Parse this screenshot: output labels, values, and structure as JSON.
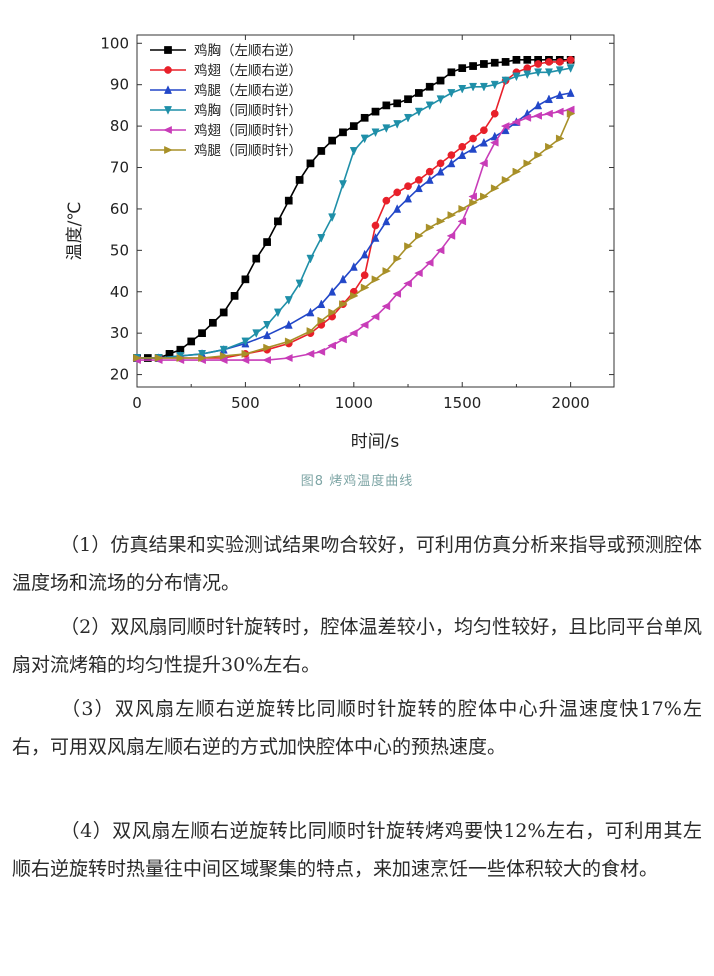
{
  "figure": {
    "caption": "图8 烤鸡温度曲线"
  },
  "chart_data": {
    "type": "line",
    "xlabel": "时间/s",
    "ylabel": "温度/℃",
    "xlim": [
      0,
      2200
    ],
    "ylim": [
      17,
      102
    ],
    "xticks": [
      0,
      500,
      1000,
      1500,
      2000
    ],
    "yticks": [
      20,
      30,
      40,
      50,
      60,
      70,
      80,
      90,
      100
    ],
    "grid": false,
    "legend": "top-left",
    "series": [
      {
        "name": "鸡胸（左顺右逆）",
        "color": "#000000",
        "marker": "square",
        "x": [
          0,
          50,
          100,
          150,
          200,
          250,
          300,
          350,
          400,
          450,
          500,
          550,
          600,
          650,
          700,
          750,
          800,
          850,
          900,
          950,
          1000,
          1050,
          1100,
          1150,
          1200,
          1250,
          1300,
          1350,
          1400,
          1450,
          1500,
          1550,
          1600,
          1650,
          1700,
          1750,
          1800,
          1850,
          1900,
          1950,
          2000
        ],
        "y": [
          24,
          24,
          24,
          25,
          26,
          28,
          30,
          32.5,
          35,
          39,
          43,
          48,
          52,
          57,
          62,
          67,
          71,
          74,
          76.5,
          78.5,
          80,
          82,
          83.5,
          85,
          85.5,
          86.5,
          88,
          89.5,
          91,
          93,
          94,
          94.5,
          95,
          95.3,
          95.5,
          96,
          96,
          96,
          96,
          96,
          96
        ]
      },
      {
        "name": "鸡翅（左顺右逆）",
        "color": "#e8202a",
        "marker": "circle",
        "x": [
          0,
          100,
          200,
          300,
          400,
          500,
          600,
          700,
          800,
          850,
          900,
          950,
          1000,
          1050,
          1100,
          1150,
          1200,
          1250,
          1300,
          1350,
          1400,
          1450,
          1500,
          1550,
          1600,
          1650,
          1700,
          1750,
          1800,
          1850,
          1900,
          1950,
          2000
        ],
        "y": [
          24,
          24,
          24,
          24,
          24,
          25,
          26,
          27.5,
          30,
          32,
          34,
          37,
          40,
          44,
          56,
          62,
          64,
          65.5,
          67,
          69,
          71,
          73,
          75,
          77,
          79,
          83,
          91,
          93,
          94,
          95,
          95.5,
          95.5,
          96
        ]
      },
      {
        "name": "鸡腿（左顺右逆）",
        "color": "#2247c8",
        "marker": "triangle-up",
        "x": [
          0,
          100,
          200,
          300,
          400,
          500,
          600,
          700,
          800,
          850,
          900,
          950,
          1000,
          1050,
          1100,
          1150,
          1200,
          1250,
          1300,
          1350,
          1400,
          1450,
          1500,
          1550,
          1600,
          1650,
          1700,
          1750,
          1800,
          1850,
          1900,
          1950,
          2000
        ],
        "y": [
          24,
          24,
          24.5,
          25,
          26,
          27.5,
          29.5,
          32,
          35,
          37,
          40,
          43,
          46,
          49,
          53,
          57,
          60,
          62.5,
          65,
          67,
          69,
          71,
          73,
          74.5,
          76,
          77.5,
          79,
          81,
          83,
          85,
          86.5,
          87.5,
          88
        ]
      },
      {
        "name": "鸡胸（同顺时针）",
        "color": "#1f8fa8",
        "marker": "triangle-down",
        "x": [
          0,
          100,
          200,
          300,
          400,
          500,
          550,
          600,
          650,
          700,
          750,
          800,
          850,
          900,
          950,
          1000,
          1050,
          1100,
          1150,
          1200,
          1250,
          1300,
          1350,
          1400,
          1450,
          1500,
          1550,
          1600,
          1650,
          1700,
          1750,
          1800,
          1850,
          1900,
          1950,
          2000
        ],
        "y": [
          24,
          24,
          24.5,
          25,
          26,
          28,
          30,
          32,
          35,
          38,
          42,
          48,
          53,
          58,
          66,
          74,
          77,
          78.5,
          79.5,
          80.5,
          82,
          83.5,
          85,
          86.5,
          88,
          89,
          89.5,
          89.5,
          90,
          91,
          92,
          92.5,
          93,
          93,
          93.5,
          94
        ]
      },
      {
        "name": "鸡翅（同顺时针）",
        "color": "#c83cb8",
        "marker": "triangle-left",
        "x": [
          0,
          100,
          200,
          300,
          400,
          500,
          600,
          700,
          800,
          850,
          900,
          950,
          1000,
          1050,
          1100,
          1150,
          1200,
          1250,
          1300,
          1350,
          1400,
          1450,
          1500,
          1550,
          1600,
          1650,
          1700,
          1750,
          1800,
          1850,
          1900,
          1950,
          2000
        ],
        "y": [
          23.5,
          23.5,
          23.5,
          23.5,
          23.5,
          23.5,
          23.5,
          24,
          25,
          25.5,
          27,
          28.5,
          30,
          32,
          34,
          36.5,
          39.5,
          42,
          44.5,
          47,
          50,
          53.5,
          57,
          63,
          71,
          76,
          80,
          81,
          82,
          82.5,
          83,
          83.5,
          84
        ]
      },
      {
        "name": "鸡腿（同顺时针）",
        "color": "#a89028",
        "marker": "triangle-right",
        "x": [
          0,
          100,
          200,
          300,
          400,
          500,
          600,
          700,
          800,
          850,
          900,
          950,
          1000,
          1050,
          1100,
          1150,
          1200,
          1250,
          1300,
          1350,
          1400,
          1450,
          1500,
          1550,
          1600,
          1650,
          1700,
          1750,
          1800,
          1850,
          1900,
          1950,
          2000
        ],
        "y": [
          24,
          24,
          24,
          24,
          24.5,
          25,
          26.5,
          28,
          30.5,
          33,
          35,
          37,
          39,
          41,
          43,
          45,
          48,
          51,
          53.5,
          55.5,
          57,
          58.5,
          60,
          61.5,
          63,
          65,
          67,
          69,
          71,
          73,
          75,
          77,
          83
        ]
      }
    ]
  },
  "paragraphs": {
    "p1": "（1）仿真结果和实验测试结果吻合较好，可利用仿真分析来指导或预测腔体温度场和流场的分布情况。",
    "p2": "（2）双风扇同顺时针旋转时，腔体温差较小，均匀性较好，且比同平台单风扇对流烤箱的均匀性提升30%左右。",
    "p3": "（3）双风扇左顺右逆旋转比同顺时针旋转的腔体中心升温速度快17%左右，可用双风扇左顺右逆的方式加快腔体中心的预热速度。",
    "p4": "（4）双风扇左顺右逆旋转比同顺时针旋转烤鸡要快12%左右，可利用其左顺右逆旋转时热量往中间区域聚集的特点，来加速烹饪一些体积较大的食材。"
  }
}
